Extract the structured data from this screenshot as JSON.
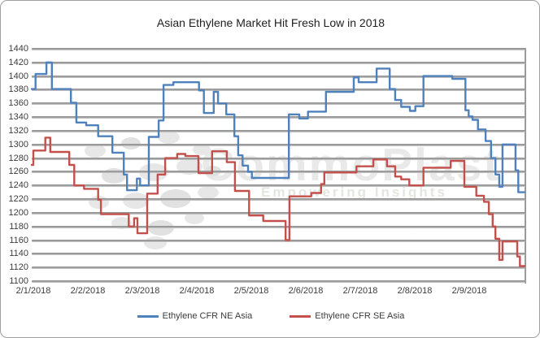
{
  "chart": {
    "title": "Asian Ethylene Market Hit Fresh Low in 2018",
    "watermark": {
      "brand": "CommoPlast",
      "tagline": "Empowering Insights"
    },
    "chart_data": {
      "type": "line",
      "title": "Asian Ethylene Market Hit Fresh Low in 2018",
      "xlabel": "",
      "ylabel": "",
      "grid": "horizontal",
      "grid_color": "#9b9b9b",
      "legend_position": "bottom",
      "x_axis": {
        "tick_labels": [
          "2/1/2018",
          "2/2/2018",
          "2/3/2018",
          "2/4/2018",
          "2/5/2018",
          "2/6/2018",
          "2/7/2018",
          "2/8/2018",
          "2/9/2018"
        ],
        "x_unit_note": "point x values are in month-tick units: 1 = 2/1/2018 tick, 2 = 2/2/2018 tick, ... 10 = one interval past 2/9/2018"
      },
      "y_axis": {
        "min": 1100,
        "max": 1440,
        "step": 20,
        "tick_labels": [
          "1440",
          "1420",
          "1400",
          "1380",
          "1360",
          "1340",
          "1320",
          "1300",
          "1280",
          "1260",
          "1240",
          "1220",
          "1200",
          "1180",
          "1160",
          "1140",
          "1120",
          "1100"
        ]
      },
      "series": [
        {
          "name": "Ethylene CFR NE Asia",
          "color": "#4F81BD",
          "points": [
            [
              0.97,
              1381
            ],
            [
              1.04,
              1403
            ],
            [
              1.24,
              1420
            ],
            [
              1.34,
              1381
            ],
            [
              1.69,
              1361
            ],
            [
              1.79,
              1332
            ],
            [
              1.97,
              1328
            ],
            [
              2.19,
              1312
            ],
            [
              2.45,
              1288
            ],
            [
              2.66,
              1256
            ],
            [
              2.72,
              1233
            ],
            [
              2.9,
              1250
            ],
            [
              2.96,
              1240
            ],
            [
              3.12,
              1311
            ],
            [
              3.3,
              1335
            ],
            [
              3.39,
              1387
            ],
            [
              3.57,
              1391
            ],
            [
              4.04,
              1379
            ],
            [
              4.13,
              1346
            ],
            [
              4.31,
              1377
            ],
            [
              4.39,
              1360
            ],
            [
              4.54,
              1344
            ],
            [
              4.69,
              1312
            ],
            [
              4.76,
              1284
            ],
            [
              4.84,
              1269
            ],
            [
              4.94,
              1260
            ],
            [
              5.01,
              1251
            ],
            [
              5.69,
              1344
            ],
            [
              5.88,
              1338
            ],
            [
              6.04,
              1348
            ],
            [
              6.37,
              1377
            ],
            [
              6.88,
              1398
            ],
            [
              6.97,
              1391
            ],
            [
              7.3,
              1411
            ],
            [
              7.54,
              1381
            ],
            [
              7.64,
              1365
            ],
            [
              7.75,
              1355
            ],
            [
              7.91,
              1349
            ],
            [
              8.01,
              1356
            ],
            [
              8.16,
              1400
            ],
            [
              8.69,
              1396
            ],
            [
              8.93,
              1350
            ],
            [
              8.99,
              1341
            ],
            [
              9.06,
              1336
            ],
            [
              9.16,
              1322
            ],
            [
              9.3,
              1305
            ],
            [
              9.4,
              1280
            ],
            [
              9.48,
              1256
            ],
            [
              9.55,
              1238
            ],
            [
              9.61,
              1300
            ],
            [
              9.85,
              1262
            ],
            [
              9.9,
              1230
            ],
            [
              10.01,
              1230
            ]
          ]
        },
        {
          "name": "Ethylene CFR SE Asia",
          "color": "#C4504C",
          "points": [
            [
              0.97,
              1270
            ],
            [
              1.0,
              1291
            ],
            [
              1.22,
              1310
            ],
            [
              1.31,
              1289
            ],
            [
              1.66,
              1270
            ],
            [
              1.75,
              1240
            ],
            [
              1.93,
              1235
            ],
            [
              2.19,
              1219
            ],
            [
              2.24,
              1198
            ],
            [
              2.75,
              1180
            ],
            [
              2.85,
              1192
            ],
            [
              2.91,
              1170
            ],
            [
              3.09,
              1228
            ],
            [
              3.28,
              1256
            ],
            [
              3.42,
              1280
            ],
            [
              3.64,
              1286
            ],
            [
              3.79,
              1283
            ],
            [
              4.03,
              1258
            ],
            [
              4.28,
              1290
            ],
            [
              4.55,
              1274
            ],
            [
              4.7,
              1232
            ],
            [
              4.96,
              1196
            ],
            [
              5.22,
              1188
            ],
            [
              5.63,
              1160
            ],
            [
              5.7,
              1224
            ],
            [
              6.1,
              1229
            ],
            [
              6.28,
              1242
            ],
            [
              6.34,
              1259
            ],
            [
              6.93,
              1268
            ],
            [
              7.24,
              1278
            ],
            [
              7.49,
              1268
            ],
            [
              7.64,
              1253
            ],
            [
              7.75,
              1249
            ],
            [
              7.9,
              1240
            ],
            [
              8.16,
              1266
            ],
            [
              8.66,
              1276
            ],
            [
              8.91,
              1238
            ],
            [
              9.13,
              1225
            ],
            [
              9.27,
              1216
            ],
            [
              9.36,
              1198
            ],
            [
              9.43,
              1180
            ],
            [
              9.48,
              1162
            ],
            [
              9.55,
              1131
            ],
            [
              9.61,
              1158
            ],
            [
              9.88,
              1136
            ],
            [
              9.93,
              1122
            ],
            [
              10.0,
              1122
            ]
          ]
        }
      ]
    }
  }
}
